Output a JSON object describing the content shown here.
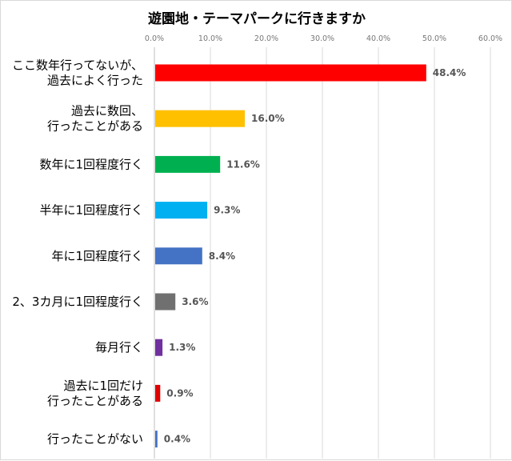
{
  "chart_data": {
    "type": "bar",
    "orientation": "horizontal",
    "title": "遊園地・テーマパークに行きますか",
    "xlim": [
      0,
      60
    ],
    "tick_values": [
      0,
      10,
      20,
      30,
      40,
      50,
      60
    ],
    "tick_labels": [
      "0.0%",
      "10.0%",
      "20.0%",
      "30.0%",
      "40.0%",
      "50.0%",
      "60.0%"
    ],
    "grid": true,
    "categories": [
      [
        "ここ数年行ってないが、",
        "過去によく行った"
      ],
      [
        "過去に数回、",
        "行ったことがある"
      ],
      [
        "数年に1回程度行く"
      ],
      [
        "半年に1回程度行く"
      ],
      [
        "年に1回程度行く"
      ],
      [
        "2、3カ月に1回程度行く"
      ],
      [
        "毎月行く"
      ],
      [
        "過去に1回だけ",
        "行ったことがある"
      ],
      [
        "行ったことがない"
      ]
    ],
    "values": [
      48.4,
      16.0,
      11.6,
      9.3,
      8.4,
      3.6,
      1.3,
      0.9,
      0.4
    ],
    "value_labels": [
      "48.4%",
      "16.0%",
      "11.6%",
      "9.3%",
      "8.4%",
      "3.6%",
      "1.3%",
      "0.9%",
      "0.4%"
    ],
    "colors": [
      "#ff0000",
      "#ffc000",
      "#00b050",
      "#00b0f0",
      "#4472c4",
      "#707070",
      "#7030a0",
      "#e00000",
      "#4472c4"
    ]
  }
}
